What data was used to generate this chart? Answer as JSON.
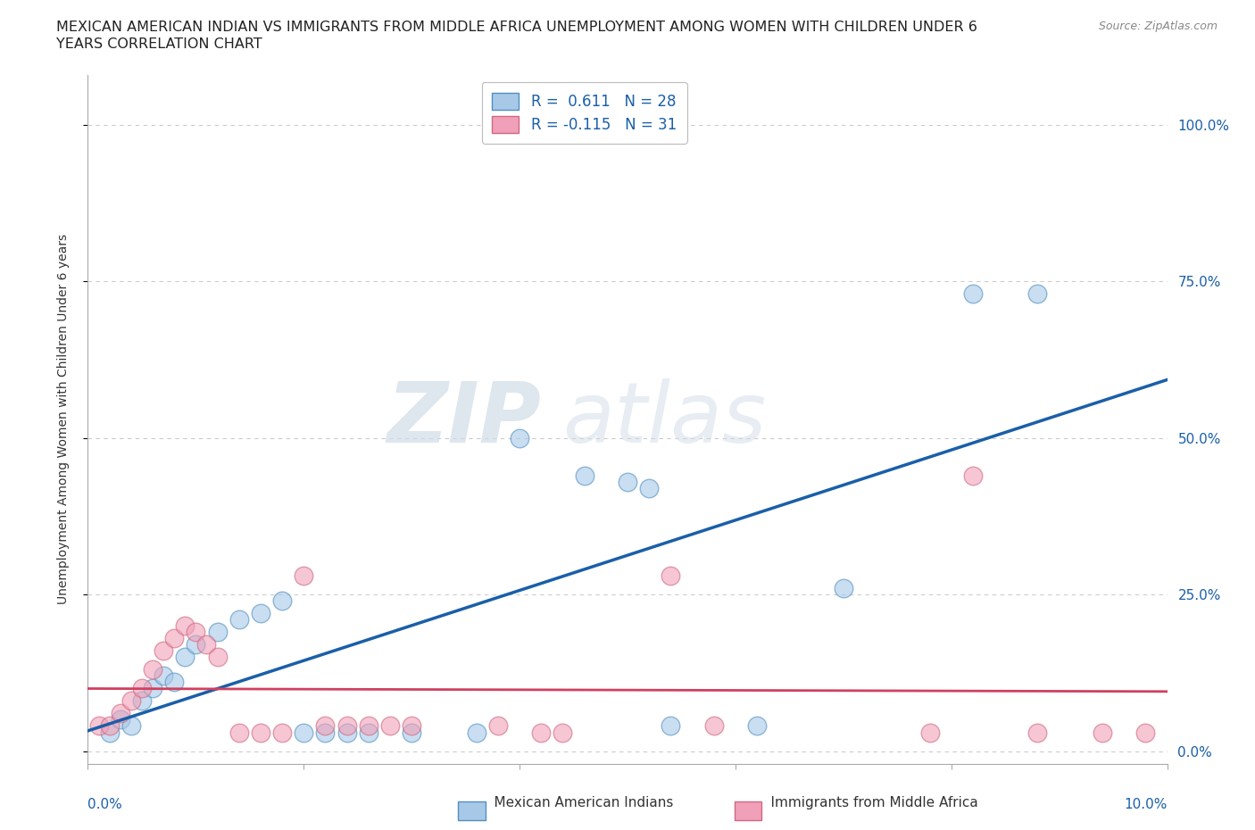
{
  "title_line1": "MEXICAN AMERICAN INDIAN VS IMMIGRANTS FROM MIDDLE AFRICA UNEMPLOYMENT AMONG WOMEN WITH CHILDREN UNDER 6",
  "title_line2": "YEARS CORRELATION CHART",
  "source": "Source: ZipAtlas.com",
  "ylabel": "Unemployment Among Women with Children Under 6 years",
  "xlim": [
    0.0,
    0.1
  ],
  "ylim": [
    -0.02,
    1.08
  ],
  "yticks": [
    0.0,
    0.25,
    0.5,
    0.75,
    1.0
  ],
  "ytick_labels": [
    "0.0%",
    "25.0%",
    "50.0%",
    "75.0%",
    "100.0%"
  ],
  "xtick_labels": [
    "0.0%",
    "",
    "",
    "",
    "",
    "10.0%"
  ],
  "legend_r1": "R =  0.611   N = 28",
  "legend_r2": "R = -0.115   N = 31",
  "blue_fill": "#a8c8e8",
  "blue_edge": "#5090c0",
  "blue_line": "#1a5fa8",
  "pink_fill": "#f0a0b8",
  "pink_edge": "#d06880",
  "pink_line": "#d04060",
  "watermark_color": "#d0dce8",
  "grid_color": "#cccccc",
  "bg_color": "#ffffff",
  "blue_scatter": [
    [
      0.002,
      0.03
    ],
    [
      0.003,
      0.05
    ],
    [
      0.004,
      0.04
    ],
    [
      0.005,
      0.08
    ],
    [
      0.006,
      0.1
    ],
    [
      0.007,
      0.12
    ],
    [
      0.008,
      0.11
    ],
    [
      0.009,
      0.15
    ],
    [
      0.01,
      0.17
    ],
    [
      0.012,
      0.19
    ],
    [
      0.014,
      0.21
    ],
    [
      0.016,
      0.22
    ],
    [
      0.018,
      0.24
    ],
    [
      0.02,
      0.03
    ],
    [
      0.022,
      0.03
    ],
    [
      0.024,
      0.03
    ],
    [
      0.026,
      0.03
    ],
    [
      0.03,
      0.03
    ],
    [
      0.036,
      0.03
    ],
    [
      0.04,
      0.5
    ],
    [
      0.046,
      0.44
    ],
    [
      0.05,
      0.43
    ],
    [
      0.052,
      0.42
    ],
    [
      0.054,
      0.04
    ],
    [
      0.062,
      0.04
    ],
    [
      0.07,
      0.26
    ],
    [
      0.082,
      0.73
    ],
    [
      0.088,
      0.73
    ]
  ],
  "pink_scatter": [
    [
      0.001,
      0.04
    ],
    [
      0.002,
      0.04
    ],
    [
      0.003,
      0.06
    ],
    [
      0.004,
      0.08
    ],
    [
      0.005,
      0.1
    ],
    [
      0.006,
      0.13
    ],
    [
      0.007,
      0.16
    ],
    [
      0.008,
      0.18
    ],
    [
      0.009,
      0.2
    ],
    [
      0.01,
      0.19
    ],
    [
      0.011,
      0.17
    ],
    [
      0.012,
      0.15
    ],
    [
      0.014,
      0.03
    ],
    [
      0.016,
      0.03
    ],
    [
      0.018,
      0.03
    ],
    [
      0.02,
      0.28
    ],
    [
      0.022,
      0.04
    ],
    [
      0.024,
      0.04
    ],
    [
      0.026,
      0.04
    ],
    [
      0.028,
      0.04
    ],
    [
      0.03,
      0.04
    ],
    [
      0.038,
      0.04
    ],
    [
      0.042,
      0.03
    ],
    [
      0.044,
      0.03
    ],
    [
      0.054,
      0.28
    ],
    [
      0.058,
      0.04
    ],
    [
      0.078,
      0.03
    ],
    [
      0.082,
      0.44
    ],
    [
      0.088,
      0.03
    ],
    [
      0.094,
      0.03
    ],
    [
      0.098,
      0.03
    ]
  ],
  "bottom_legend_blue": "Mexican American Indians",
  "bottom_legend_pink": "Immigrants from Middle Africa"
}
